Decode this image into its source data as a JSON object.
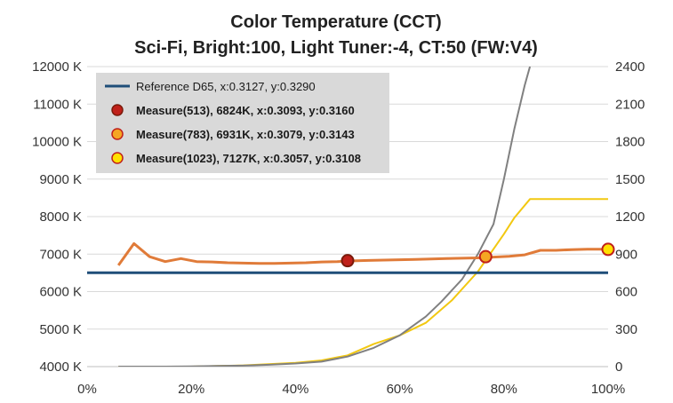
{
  "chart_data": {
    "type": "line",
    "title": "Color Temperature (CCT)",
    "subtitle": "Sci-Fi, Bright:100, Light Tuner:-4, CT:50 (FW:V4)",
    "xlabel": "",
    "ylabel": "",
    "xlim": [
      0,
      100
    ],
    "ylim": [
      4000,
      12000
    ],
    "y2lim": [
      0,
      2400
    ],
    "x_ticks": [
      "0%",
      "20%",
      "40%",
      "60%",
      "80%",
      "100%"
    ],
    "x_tick_values": [
      0,
      20,
      40,
      60,
      80,
      100
    ],
    "y_ticks": [
      "4000 K",
      "5000 K",
      "6000 K",
      "7000 K",
      "8000 K",
      "9000 K",
      "10000 K",
      "11000 K",
      "12000 K"
    ],
    "y_tick_values": [
      4000,
      5000,
      6000,
      7000,
      8000,
      9000,
      10000,
      11000,
      12000
    ],
    "y2_ticks": [
      "0",
      "300",
      "600",
      "900",
      "1200",
      "1500",
      "1800",
      "2100",
      "2400"
    ],
    "y2_tick_values": [
      0,
      300,
      600,
      900,
      1200,
      1500,
      1800,
      2100,
      2400
    ],
    "grid": "horizontal",
    "legend_position": "top-left",
    "series": [
      {
        "name": "Reference D65, x:0.3127, y:0.3290",
        "axis": "left",
        "color": "#1f4e79",
        "x": [
          0,
          100
        ],
        "y": [
          6504,
          6504
        ]
      },
      {
        "axis": "left",
        "color": "#e07b39",
        "x": [
          6,
          9,
          12,
          15,
          18,
          21,
          24,
          27,
          30,
          33,
          36,
          39,
          42,
          45,
          48,
          51,
          54,
          57,
          60,
          63,
          66,
          69,
          72,
          75,
          78,
          81,
          84,
          87,
          90,
          93,
          96,
          99,
          100
        ],
        "y": [
          6700,
          7280,
          6930,
          6800,
          6880,
          6800,
          6790,
          6770,
          6760,
          6750,
          6750,
          6760,
          6770,
          6790,
          6800,
          6820,
          6830,
          6840,
          6850,
          6860,
          6870,
          6880,
          6890,
          6900,
          6920,
          6940,
          6980,
          7100,
          7100,
          7120,
          7130,
          7130,
          7130
        ]
      },
      {
        "axis": "right",
        "color": "#808080",
        "x": [
          6,
          10,
          15,
          20,
          25,
          30,
          35,
          40,
          45,
          50,
          55,
          60,
          65,
          68,
          72,
          75,
          78,
          80,
          82,
          84,
          85
        ],
        "y": [
          0,
          0,
          0,
          2,
          5,
          8,
          15,
          25,
          40,
          80,
          150,
          250,
          400,
          520,
          700,
          900,
          1140,
          1500,
          1900,
          2250,
          2400
        ]
      },
      {
        "axis": "right",
        "color": "#f2c811",
        "x": [
          6,
          20,
          30,
          40,
          45,
          50,
          55,
          60,
          65,
          70,
          75,
          78,
          80,
          82,
          85,
          90,
          100
        ],
        "y": [
          0,
          0,
          10,
          30,
          50,
          90,
          180,
          250,
          350,
          530,
          760,
          940,
          1060,
          1190,
          1340,
          1340,
          1340
        ]
      }
    ],
    "markers": [
      {
        "name": "Measure(513), 6824K, x:0.3093, y:0.3160",
        "x": 50,
        "y": 6824,
        "fill": "#c0201a",
        "stroke": "#7a1a0a"
      },
      {
        "name": "Measure(783), 6931K, x:0.3079, y:0.3143",
        "x": 76.5,
        "y": 6931,
        "fill": "#f5a623",
        "stroke": "#c0201a"
      },
      {
        "name": "Measure(1023), 7127K, x:0.3057, y:0.3108",
        "x": 100,
        "y": 7127,
        "fill": "#ffe000",
        "stroke": "#c0201a"
      }
    ]
  }
}
